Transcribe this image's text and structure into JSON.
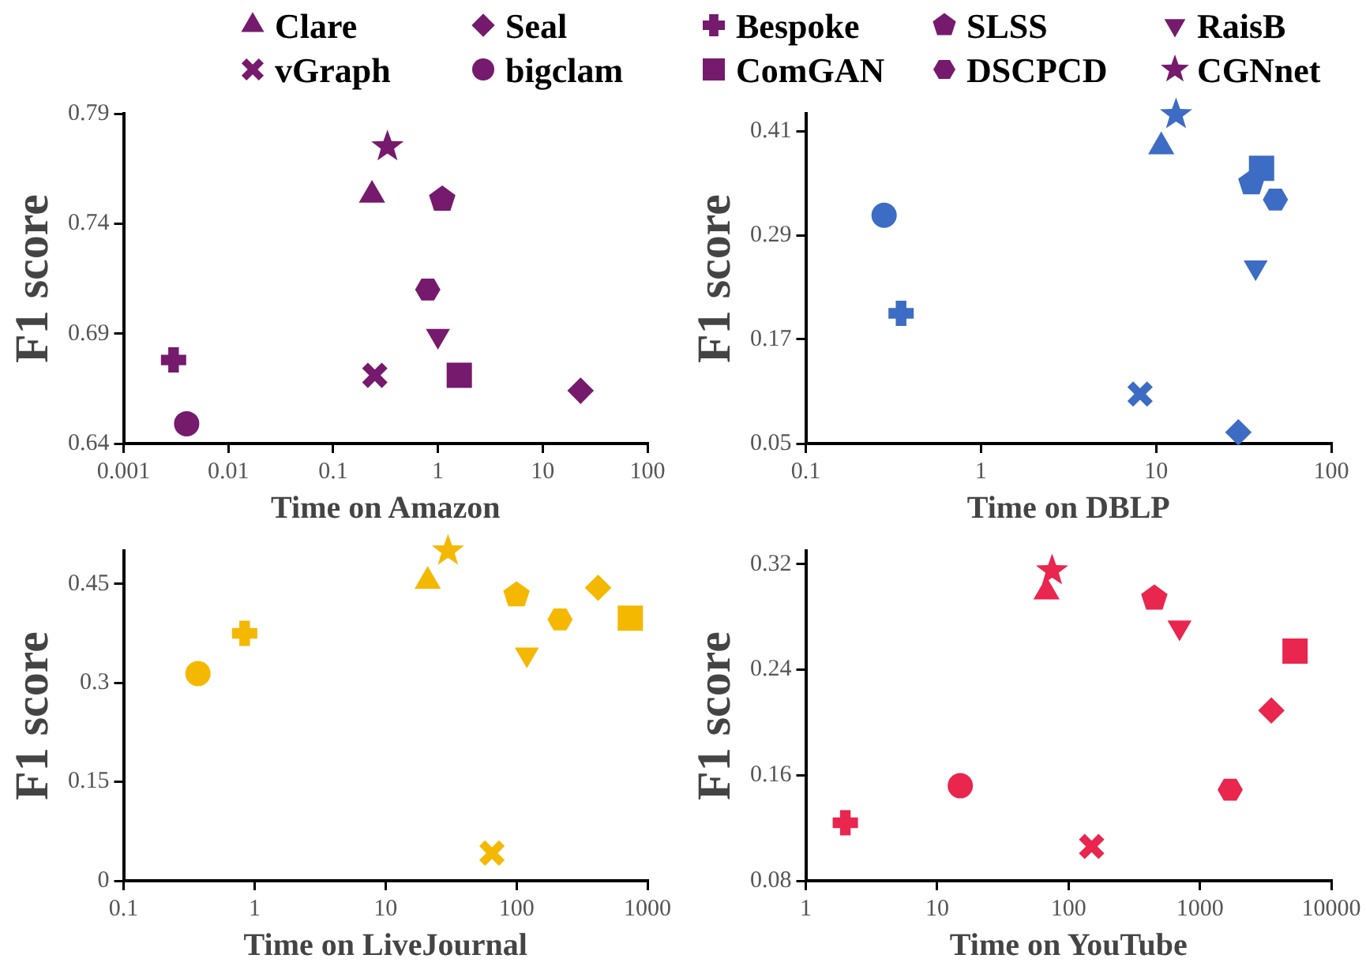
{
  "chart_data": [
    {
      "type": "scatter",
      "xlabel": "Time on Amazon",
      "ylabel": "F1 score",
      "log": "x",
      "grid": false,
      "legend": "top",
      "xlim": [
        0.001,
        100
      ],
      "xticks": [
        0.001,
        0.01,
        0.1,
        1,
        10,
        100
      ],
      "ylim": [
        0.64,
        0.79
      ],
      "yticks": [
        0.64,
        0.69,
        0.74,
        0.79
      ],
      "series": [
        {
          "name": "Clare",
          "marker": "triangle",
          "color": "#761a6e",
          "x": [
            0.235
          ],
          "values": [
            0.753
          ]
        },
        {
          "name": "Seal",
          "marker": "diamond",
          "color": "#761a6e",
          "x": [
            23
          ],
          "values": [
            0.664
          ]
        },
        {
          "name": "Bespoke",
          "marker": "cross",
          "color": "#761a6e",
          "x": [
            0.003
          ],
          "values": [
            0.678
          ]
        },
        {
          "name": "SLSS",
          "color": "#761a6e",
          "x": [
            1.1
          ],
          "values": [
            0.751
          ]
        },
        {
          "name": "RaisB",
          "marker": "triangle-down",
          "color": "#761a6e",
          "x": [
            1.0
          ],
          "values": [
            0.689
          ]
        },
        {
          "name": "vGraph",
          "marker": "x",
          "color": "#761a6e",
          "x": [
            0.25
          ],
          "values": [
            0.671
          ]
        },
        {
          "name": "bigclam",
          "marker": "circle",
          "color": "#761a6e",
          "x": [
            0.004
          ],
          "values": [
            0.649
          ]
        },
        {
          "name": "ComGAN",
          "marker": "square",
          "color": "#761a6e",
          "x": [
            1.6
          ],
          "values": [
            0.671
          ]
        },
        {
          "name": "DSCPCD",
          "color": "#761a6e",
          "x": [
            0.8
          ],
          "values": [
            0.71
          ]
        },
        {
          "name": "CGNnet",
          "marker": "star",
          "color": "#761a6e",
          "x": [
            0.33
          ],
          "values": [
            0.775
          ]
        }
      ]
    },
    {
      "type": "scatter",
      "xlabel": "Time on DBLP",
      "ylabel": "F1 score",
      "log": "x",
      "grid": false,
      "xlim": [
        0.1,
        100
      ],
      "xticks": [
        0.1,
        1,
        10,
        100
      ],
      "ylim": [
        0.05,
        0.43
      ],
      "yticks": [
        0.05,
        0.17,
        0.29,
        0.41
      ],
      "series": [
        {
          "marker": "triangle",
          "color": "#3d6cc4",
          "x": [
            10.7
          ],
          "values": [
            0.392
          ]
        },
        {
          "marker": "diamond",
          "color": "#3d6cc4",
          "x": [
            29.5
          ],
          "values": [
            0.063
          ]
        },
        {
          "marker": "cross",
          "color": "#3d6cc4",
          "x": [
            0.35
          ],
          "values": [
            0.2
          ]
        },
        {
          "color": "#3d6cc4",
          "x": [
            35
          ],
          "values": [
            0.35
          ]
        },
        {
          "marker": "triangle-down",
          "color": "#3d6cc4",
          "x": [
            37
          ],
          "values": [
            0.253
          ]
        },
        {
          "marker": "x",
          "color": "#3d6cc4",
          "x": [
            8.1
          ],
          "values": [
            0.107
          ]
        },
        {
          "marker": "circle",
          "color": "#3d6cc4",
          "x": [
            0.28
          ],
          "values": [
            0.313
          ]
        },
        {
          "marker": "square",
          "color": "#3d6cc4",
          "x": [
            40
          ],
          "values": [
            0.367
          ]
        },
        {
          "color": "#3d6cc4",
          "x": [
            48
          ],
          "values": [
            0.331
          ]
        },
        {
          "marker": "star",
          "color": "#3d6cc4",
          "x": [
            13
          ],
          "values": [
            0.429
          ]
        }
      ]
    },
    {
      "type": "scatter",
      "xlabel": "Time on LiveJournal",
      "ylabel": "F1 score",
      "log": "x",
      "grid": false,
      "xlim": [
        0.1,
        1000
      ],
      "xticks": [
        0.1,
        1,
        10,
        100,
        1000
      ],
      "ylim": [
        0,
        0.5
      ],
      "yticks": [
        0,
        0.15,
        0.3,
        0.45
      ],
      "series": [
        {
          "marker": "triangle",
          "color": "#f5b800",
          "x": [
            21
          ],
          "values": [
            0.454
          ]
        },
        {
          "marker": "diamond",
          "color": "#f5b800",
          "x": [
            420
          ],
          "values": [
            0.444
          ]
        },
        {
          "marker": "cross",
          "color": "#f5b800",
          "x": [
            0.84
          ],
          "values": [
            0.375
          ]
        },
        {
          "color": "#f5b800",
          "x": [
            100
          ],
          "values": [
            0.433
          ]
        },
        {
          "marker": "triangle-down",
          "color": "#f5b800",
          "x": [
            120
          ],
          "values": [
            0.343
          ]
        },
        {
          "marker": "x",
          "color": "#f5b800",
          "x": [
            65
          ],
          "values": [
            0.042
          ]
        },
        {
          "marker": "circle",
          "color": "#f5b800",
          "x": [
            0.37
          ],
          "values": [
            0.314
          ]
        },
        {
          "marker": "square",
          "color": "#f5b800",
          "x": [
            740
          ],
          "values": [
            0.398
          ]
        },
        {
          "color": "#f5b800",
          "x": [
            215
          ],
          "values": [
            0.396
          ]
        },
        {
          "marker": "star",
          "color": "#f5b800",
          "x": [
            30
          ],
          "values": [
            0.5
          ]
        }
      ]
    },
    {
      "type": "scatter",
      "xlabel": "Time on YouTube",
      "ylabel": "F1 score",
      "log": "x",
      "grid": false,
      "xlim": [
        1,
        10000
      ],
      "xticks": [
        1,
        10,
        100,
        1000,
        10000
      ],
      "ylim": [
        0.08,
        0.33
      ],
      "yticks": [
        0.08,
        0.16,
        0.24,
        0.32
      ],
      "series": [
        {
          "marker": "triangle",
          "color": "#e8264e",
          "x": [
            68
          ],
          "values": [
            0.299
          ]
        },
        {
          "marker": "diamond",
          "color": "#e8264e",
          "x": [
            3500
          ],
          "values": [
            0.209
          ]
        },
        {
          "marker": "cross",
          "color": "#e8264e",
          "x": [
            2.0
          ],
          "values": [
            0.124
          ]
        },
        {
          "color": "#e8264e",
          "x": [
            450
          ],
          "values": [
            0.294
          ]
        },
        {
          "marker": "triangle-down",
          "color": "#e8264e",
          "x": [
            700
          ],
          "values": [
            0.272
          ]
        },
        {
          "marker": "x",
          "color": "#e8264e",
          "x": [
            150
          ],
          "values": [
            0.106
          ]
        },
        {
          "marker": "circle",
          "color": "#e8264e",
          "x": [
            15
          ],
          "values": [
            0.152
          ]
        },
        {
          "marker": "square",
          "color": "#e8264e",
          "x": [
            5300
          ],
          "values": [
            0.254
          ]
        },
        {
          "color": "#e8264e",
          "x": [
            1700
          ],
          "values": [
            0.149
          ]
        },
        {
          "marker": "star",
          "color": "#e8264e",
          "x": [
            75
          ],
          "values": [
            0.315
          ]
        }
      ]
    }
  ]
}
